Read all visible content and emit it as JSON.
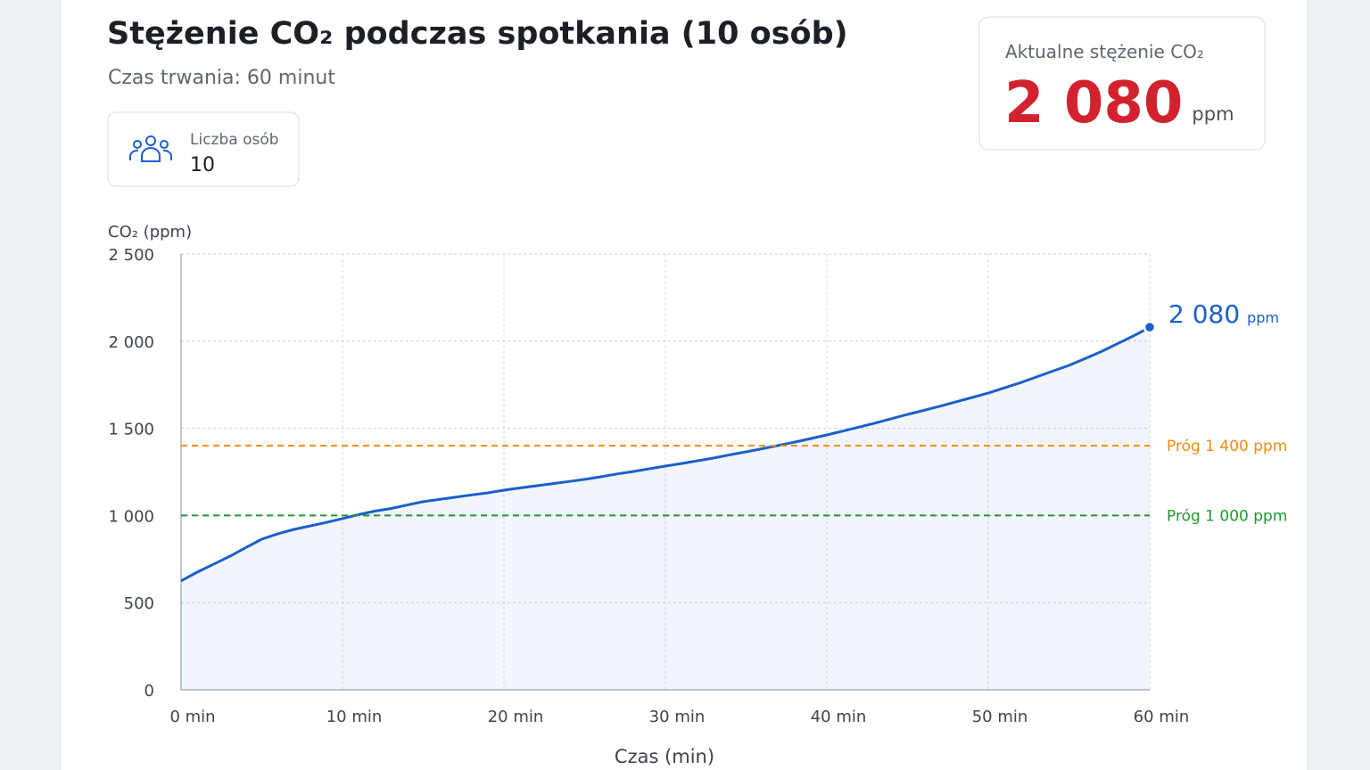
{
  "header": {
    "title": "Stężenie CO₂ podczas spotkania (10 osób)",
    "subtitle": "Czas trwania: 60 minut"
  },
  "people": {
    "label": "Liczba osób",
    "value": 10
  },
  "current": {
    "label": "Aktualne stężenie CO₂",
    "value": 2080,
    "value_label": "2 080",
    "unit": "ppm"
  },
  "chart_data": {
    "type": "line",
    "y_label": "CO₂ (ppm)",
    "x_label": "Czas (min)",
    "x": [
      0,
      1,
      2,
      3,
      4,
      5,
      6,
      7,
      8,
      9,
      10,
      11,
      12,
      13,
      14,
      15,
      16,
      17,
      18,
      19,
      20,
      21,
      22,
      23,
      24,
      25,
      26,
      27,
      28,
      29,
      30,
      31,
      32,
      33,
      34,
      35,
      36,
      37,
      38,
      39,
      40,
      41,
      42,
      43,
      44,
      45,
      46,
      47,
      48,
      49,
      50,
      51,
      52,
      53,
      54,
      55,
      56,
      57,
      58,
      59,
      60
    ],
    "series": [
      {
        "color": "#1a5fcc",
        "end_label": "2 080",
        "end_unit": "ppm",
        "values": [
          625,
          675,
          720,
          765,
          815,
          864,
          895,
          920,
          940,
          960,
          982,
          1005,
          1025,
          1040,
          1060,
          1079,
          1092,
          1105,
          1118,
          1130,
          1145,
          1158,
          1170,
          1182,
          1195,
          1207,
          1222,
          1238,
          1252,
          1268,
          1283,
          1298,
          1314,
          1330,
          1348,
          1365,
          1383,
          1402,
          1421,
          1441,
          1462,
          1484,
          1507,
          1530,
          1555,
          1580,
          1603,
          1627,
          1652,
          1677,
          1702,
          1732,
          1762,
          1795,
          1828,
          1861,
          1900,
          1940,
          1985,
          2030,
          2080
        ]
      }
    ],
    "xlim": [
      0,
      60
    ],
    "ylim": [
      0,
      2500
    ],
    "xticks": [
      {
        "value": 0,
        "label": "0 min"
      },
      {
        "value": 10,
        "label": "10 min"
      },
      {
        "value": 20,
        "label": "20 min"
      },
      {
        "value": 30,
        "label": "30 min"
      },
      {
        "value": 40,
        "label": "40 min"
      },
      {
        "value": 50,
        "label": "50 min"
      },
      {
        "value": 60,
        "label": "60 min"
      }
    ],
    "yticks": [
      0,
      500,
      {
        "value": 1000,
        "label": "1 000"
      },
      {
        "value": 1500,
        "label": "1 500"
      },
      {
        "value": 2000,
        "label": "2 000"
      },
      {
        "value": 2500,
        "label": "2 500"
      }
    ],
    "grid": true,
    "area": true,
    "thresholds": [
      {
        "value": 1400,
        "label": "Próg 1 400 ppm",
        "color": "#f28c0f"
      },
      {
        "value": 1000,
        "label": "Próg 1 000 ppm",
        "color": "#1e9a2e"
      }
    ]
  }
}
